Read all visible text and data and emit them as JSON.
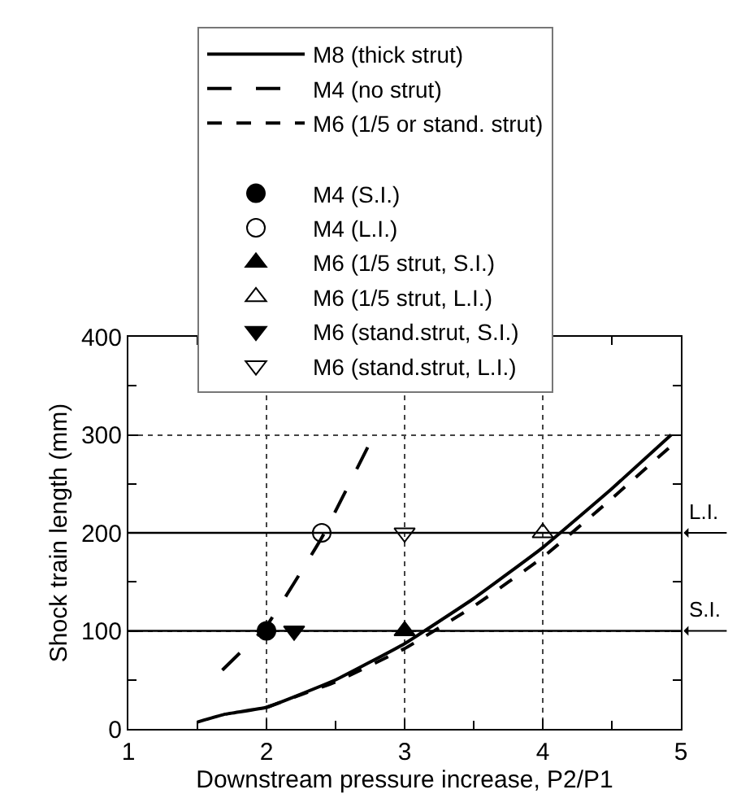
{
  "chart_data": {
    "type": "line",
    "xlabel": "Downstream pressure increase, P2/P1",
    "ylabel": "Shock train length (mm)",
    "xlim": [
      1,
      5
    ],
    "ylim": [
      0,
      400
    ],
    "xticks": [
      1,
      {
        "value": 1.5,
        "label": null
      },
      2,
      {
        "value": 2.5,
        "label": null
      },
      3,
      {
        "value": 3.5,
        "label": null
      },
      4,
      {
        "value": 4.5,
        "label": null
      },
      5
    ],
    "yticks": [
      0,
      {
        "value": 50,
        "label": null
      },
      100,
      {
        "value": 150,
        "label": null
      },
      200,
      {
        "value": 250,
        "label": null
      },
      300,
      {
        "value": 350,
        "label": null
      },
      400
    ],
    "grid": true,
    "legend": "top",
    "series": [
      {
        "name": "M8 (thick strut)",
        "line_style": "solid",
        "color": "#000000",
        "x": [
          1.5,
          1.7,
          2,
          2.5,
          3,
          3.5,
          4,
          4.5,
          4.93
        ],
        "values": [
          7,
          15,
          22,
          50,
          87,
          133,
          185,
          245,
          300
        ]
      },
      {
        "name": "M4 (no strut)",
        "line_style": "dashed",
        "color": "#000000",
        "x": [
          1.68,
          2,
          2.4,
          2.76
        ],
        "values": [
          60,
          105,
          195,
          295
        ]
      },
      {
        "name": "M6 (1/5 or stand. strut)",
        "line_style": "dotted",
        "color": "#000000",
        "x": [
          2,
          2.5,
          3,
          3.5,
          4,
          4.5,
          4.98
        ],
        "values": [
          22,
          48,
          82,
          125,
          175,
          235,
          295
        ]
      },
      {
        "name": "M4 (S.I.)",
        "type": "scatter",
        "marker": "circle",
        "color": "#000000",
        "x": [
          2
        ],
        "values": [
          100
        ]
      },
      {
        "name": "M4 (L.I.)",
        "type": "scatter",
        "marker": "circle-open",
        "color": "#000000",
        "x": [
          2.4
        ],
        "values": [
          200
        ]
      },
      {
        "name": "M6 (1/5 strut, S.I.)",
        "type": "scatter",
        "marker": "triangle",
        "color": "#000000",
        "x": [
          3
        ],
        "values": [
          100
        ]
      },
      {
        "name": "M6 (1/5 strut, L.I.)",
        "type": "scatter",
        "marker": "triangle-open",
        "color": "#000000",
        "x": [
          4
        ],
        "values": [
          200
        ]
      },
      {
        "name": "M6 (stand.strut, S.I.)",
        "type": "scatter",
        "marker": "triangle-down",
        "color": "#000000",
        "x": [
          2.2
        ],
        "values": [
          100
        ]
      },
      {
        "name": "M6 (stand.strut, L.I.)",
        "type": "scatter",
        "marker": "triangle-down-open",
        "color": "#000000",
        "x": [
          3
        ],
        "values": [
          200
        ]
      }
    ],
    "ref_lines": [
      {
        "axis": "y",
        "value": 100,
        "label": "S.I.",
        "color": "#000000"
      },
      {
        "axis": "y",
        "value": 200,
        "label": "L.I.",
        "color": "#000000"
      }
    ]
  }
}
